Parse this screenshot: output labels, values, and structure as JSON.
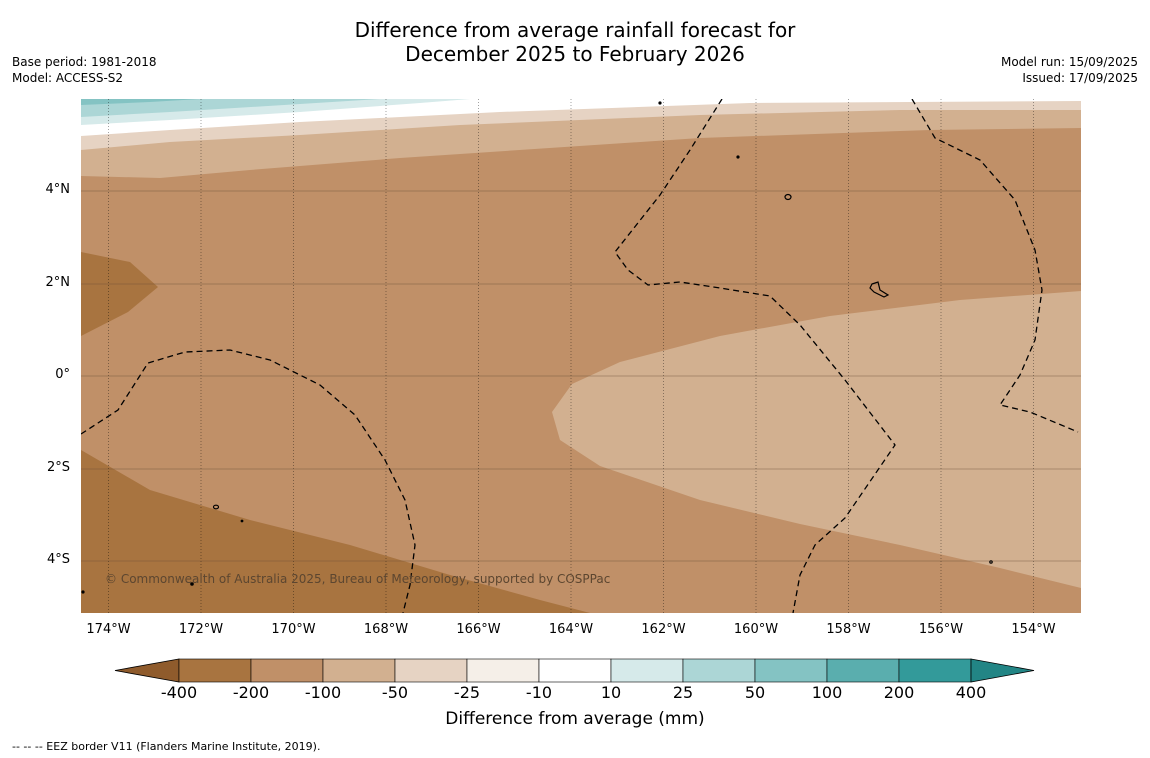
{
  "title": {
    "line1": "Difference from average rainfall forecast for",
    "line2": "December 2025 to February 2026"
  },
  "meta_left": {
    "base_period": "Base period: 1981-2018",
    "model": "Model: ACCESS-S2"
  },
  "meta_right": {
    "model_run": "Model run: 15/09/2025",
    "issued": "Issued: 17/09/2025"
  },
  "latitude_labels": [
    "4°N",
    "2°N",
    "0°",
    "2°S",
    "4°S"
  ],
  "longitude_labels": [
    "174°W",
    "172°W",
    "170°W",
    "168°W",
    "166°W",
    "164°W",
    "162°W",
    "160°W",
    "158°W",
    "156°W",
    "154°W"
  ],
  "copyright": "© Commonwealth of Australia 2025, Bureau of Meteorology, supported by COSPPac",
  "colorbar": {
    "ticks": [
      "-400",
      "-200",
      "-100",
      "-50",
      "-25",
      "-10",
      "10",
      "25",
      "50",
      "100",
      "200",
      "400"
    ],
    "colors": [
      "#a87440",
      "#c09068",
      "#d2b090",
      "#e6d3c3",
      "#f5efe8",
      "#ffffff",
      "#d6eaea",
      "#acd6d6",
      "#84c3c3",
      "#5aaeae",
      "#339a9a"
    ],
    "under_color": "#8f5b2c",
    "over_color": "#228585",
    "label": "Difference from average (mm)"
  },
  "footnote": "-- -- -- EEZ border V11 (Flanders Marine Institute, 2019)."
}
